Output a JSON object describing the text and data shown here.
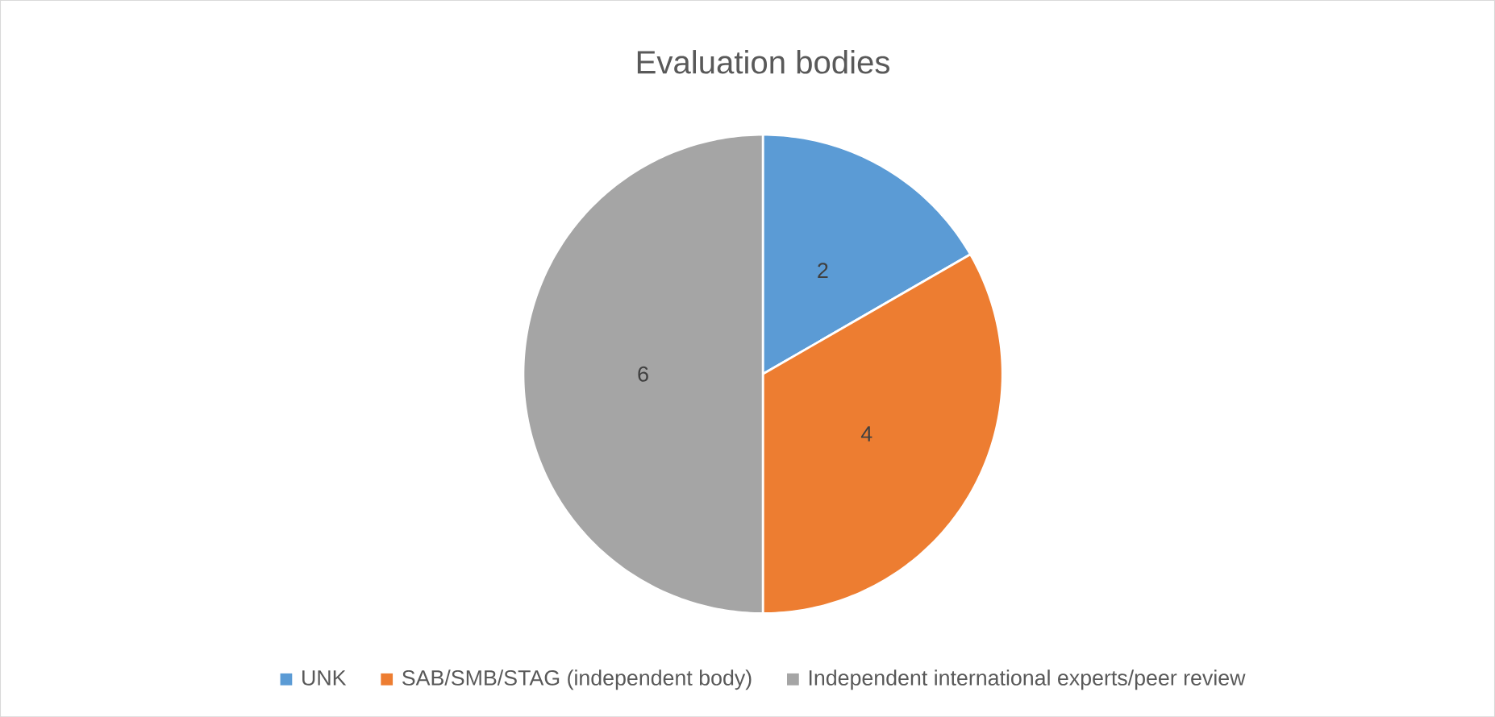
{
  "chart_data": {
    "type": "pie",
    "title": "Evaluation bodies",
    "categories": [
      "UNK",
      "SAB/SMB/STAG (independent body)",
      "Independent international experts/peer review"
    ],
    "values": [
      2,
      4,
      6
    ],
    "colors": [
      "#5b9bd5",
      "#ed7d31",
      "#a5a5a5"
    ],
    "data_labels": true,
    "legend": "bottom"
  }
}
